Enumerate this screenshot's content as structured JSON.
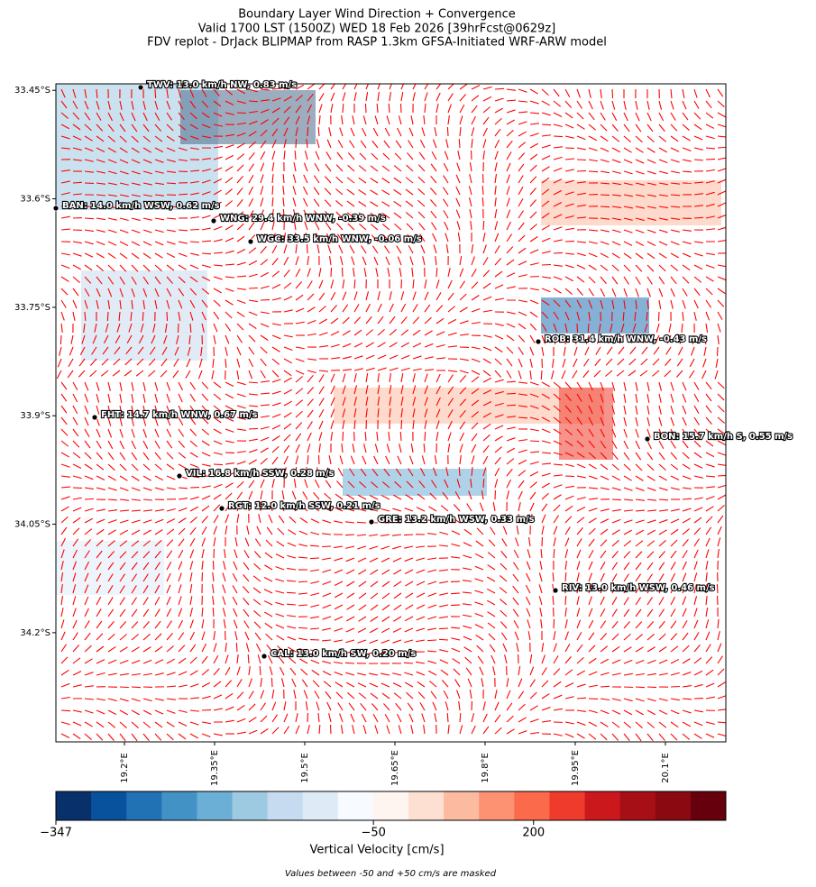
{
  "map": {
    "title": [
      "Boundary Layer Wind Direction + Convergence",
      "Valid 1700 LST (1500Z) WED 18 Feb 2026 [39hrFcst@0629z]",
      "FDV replot - DrJack BLIPMAP from RASP 1.3km GFSA-Initiated WRF-ARW model"
    ],
    "xlim": [
      19.086,
      20.2005
    ],
    "ylim": [
      -34.351,
      -33.441
    ],
    "xticks": [
      {
        "value": 19.2,
        "label": "19.2°E"
      },
      {
        "value": 19.35,
        "label": "19.35°E"
      },
      {
        "value": 19.5,
        "label": "19.5°E"
      },
      {
        "value": 19.65,
        "label": "19.65°E"
      },
      {
        "value": 19.8,
        "label": "19.8°E"
      },
      {
        "value": 19.95,
        "label": "19.95°E"
      },
      {
        "value": 20.1,
        "label": "20.1°E"
      }
    ],
    "yticks": [
      {
        "value": -33.45,
        "label": "33.45°S"
      },
      {
        "value": -33.6,
        "label": "33.6°S"
      },
      {
        "value": -33.75,
        "label": "33.75°S"
      },
      {
        "value": -33.9,
        "label": "33.9°S"
      },
      {
        "value": -34.05,
        "label": "34.05°S"
      },
      {
        "value": -34.2,
        "label": "34.2°S"
      }
    ],
    "stations": [
      {
        "label": "TWV: 13.0 km/h NW, 0.83 m/s"
      },
      {
        "label": "BAN: 14.0 km/h WSW, 0.62 m/s"
      },
      {
        "label": "WNG: 29.4 km/h WNW, -0.39 m/s"
      },
      {
        "label": "WGC: 33.5 km/h WNW, -0.06 m/s"
      },
      {
        "label": "ROB: 31.4 km/h WNW, -0.43 m/s"
      },
      {
        "label": "FHT: 14.7 km/h WNW, 0.67 m/s"
      },
      {
        "label": "BON: 15.7 km/h S, 0.55 m/s"
      },
      {
        "label": "VIL: 16.8 km/h SSW, 0.28 m/s"
      },
      {
        "label": "RGT: 12.0 km/h SSW, 0.21 m/s"
      },
      {
        "label": "GRE: 13.2 km/h WSW, 0.33 m/s"
      },
      {
        "label": "RIV: 13.0 km/h WSW, 0.46 m/s"
      },
      {
        "label": "CAL: 13.0 km/h SW, 0.20 m/s"
      }
    ],
    "vector_color": "#ff0000",
    "colorbar": {
      "colors": [
        "#08306b",
        "#08519c",
        "#2171b5",
        "#4292c6",
        "#6baed6",
        "#9ecae1",
        "#c6dbef",
        "#deebf7",
        "#f7fbff",
        "#fff5f0",
        "#fee0d2",
        "#fcbba1",
        "#fc9272",
        "#fb6a4a",
        "#ef3b2c",
        "#cb181d",
        "#a50f15",
        "#8b0a12",
        "#67000d"
      ],
      "ticks": [
        {
          "value": -347,
          "label": "−347"
        },
        {
          "value": -50,
          "label": "−50"
        },
        {
          "value": 200,
          "label": "200"
        }
      ],
      "label": "Vertical Velocity [cm/s]"
    },
    "note": "Values between -50 and +50 cm/s are masked"
  }
}
